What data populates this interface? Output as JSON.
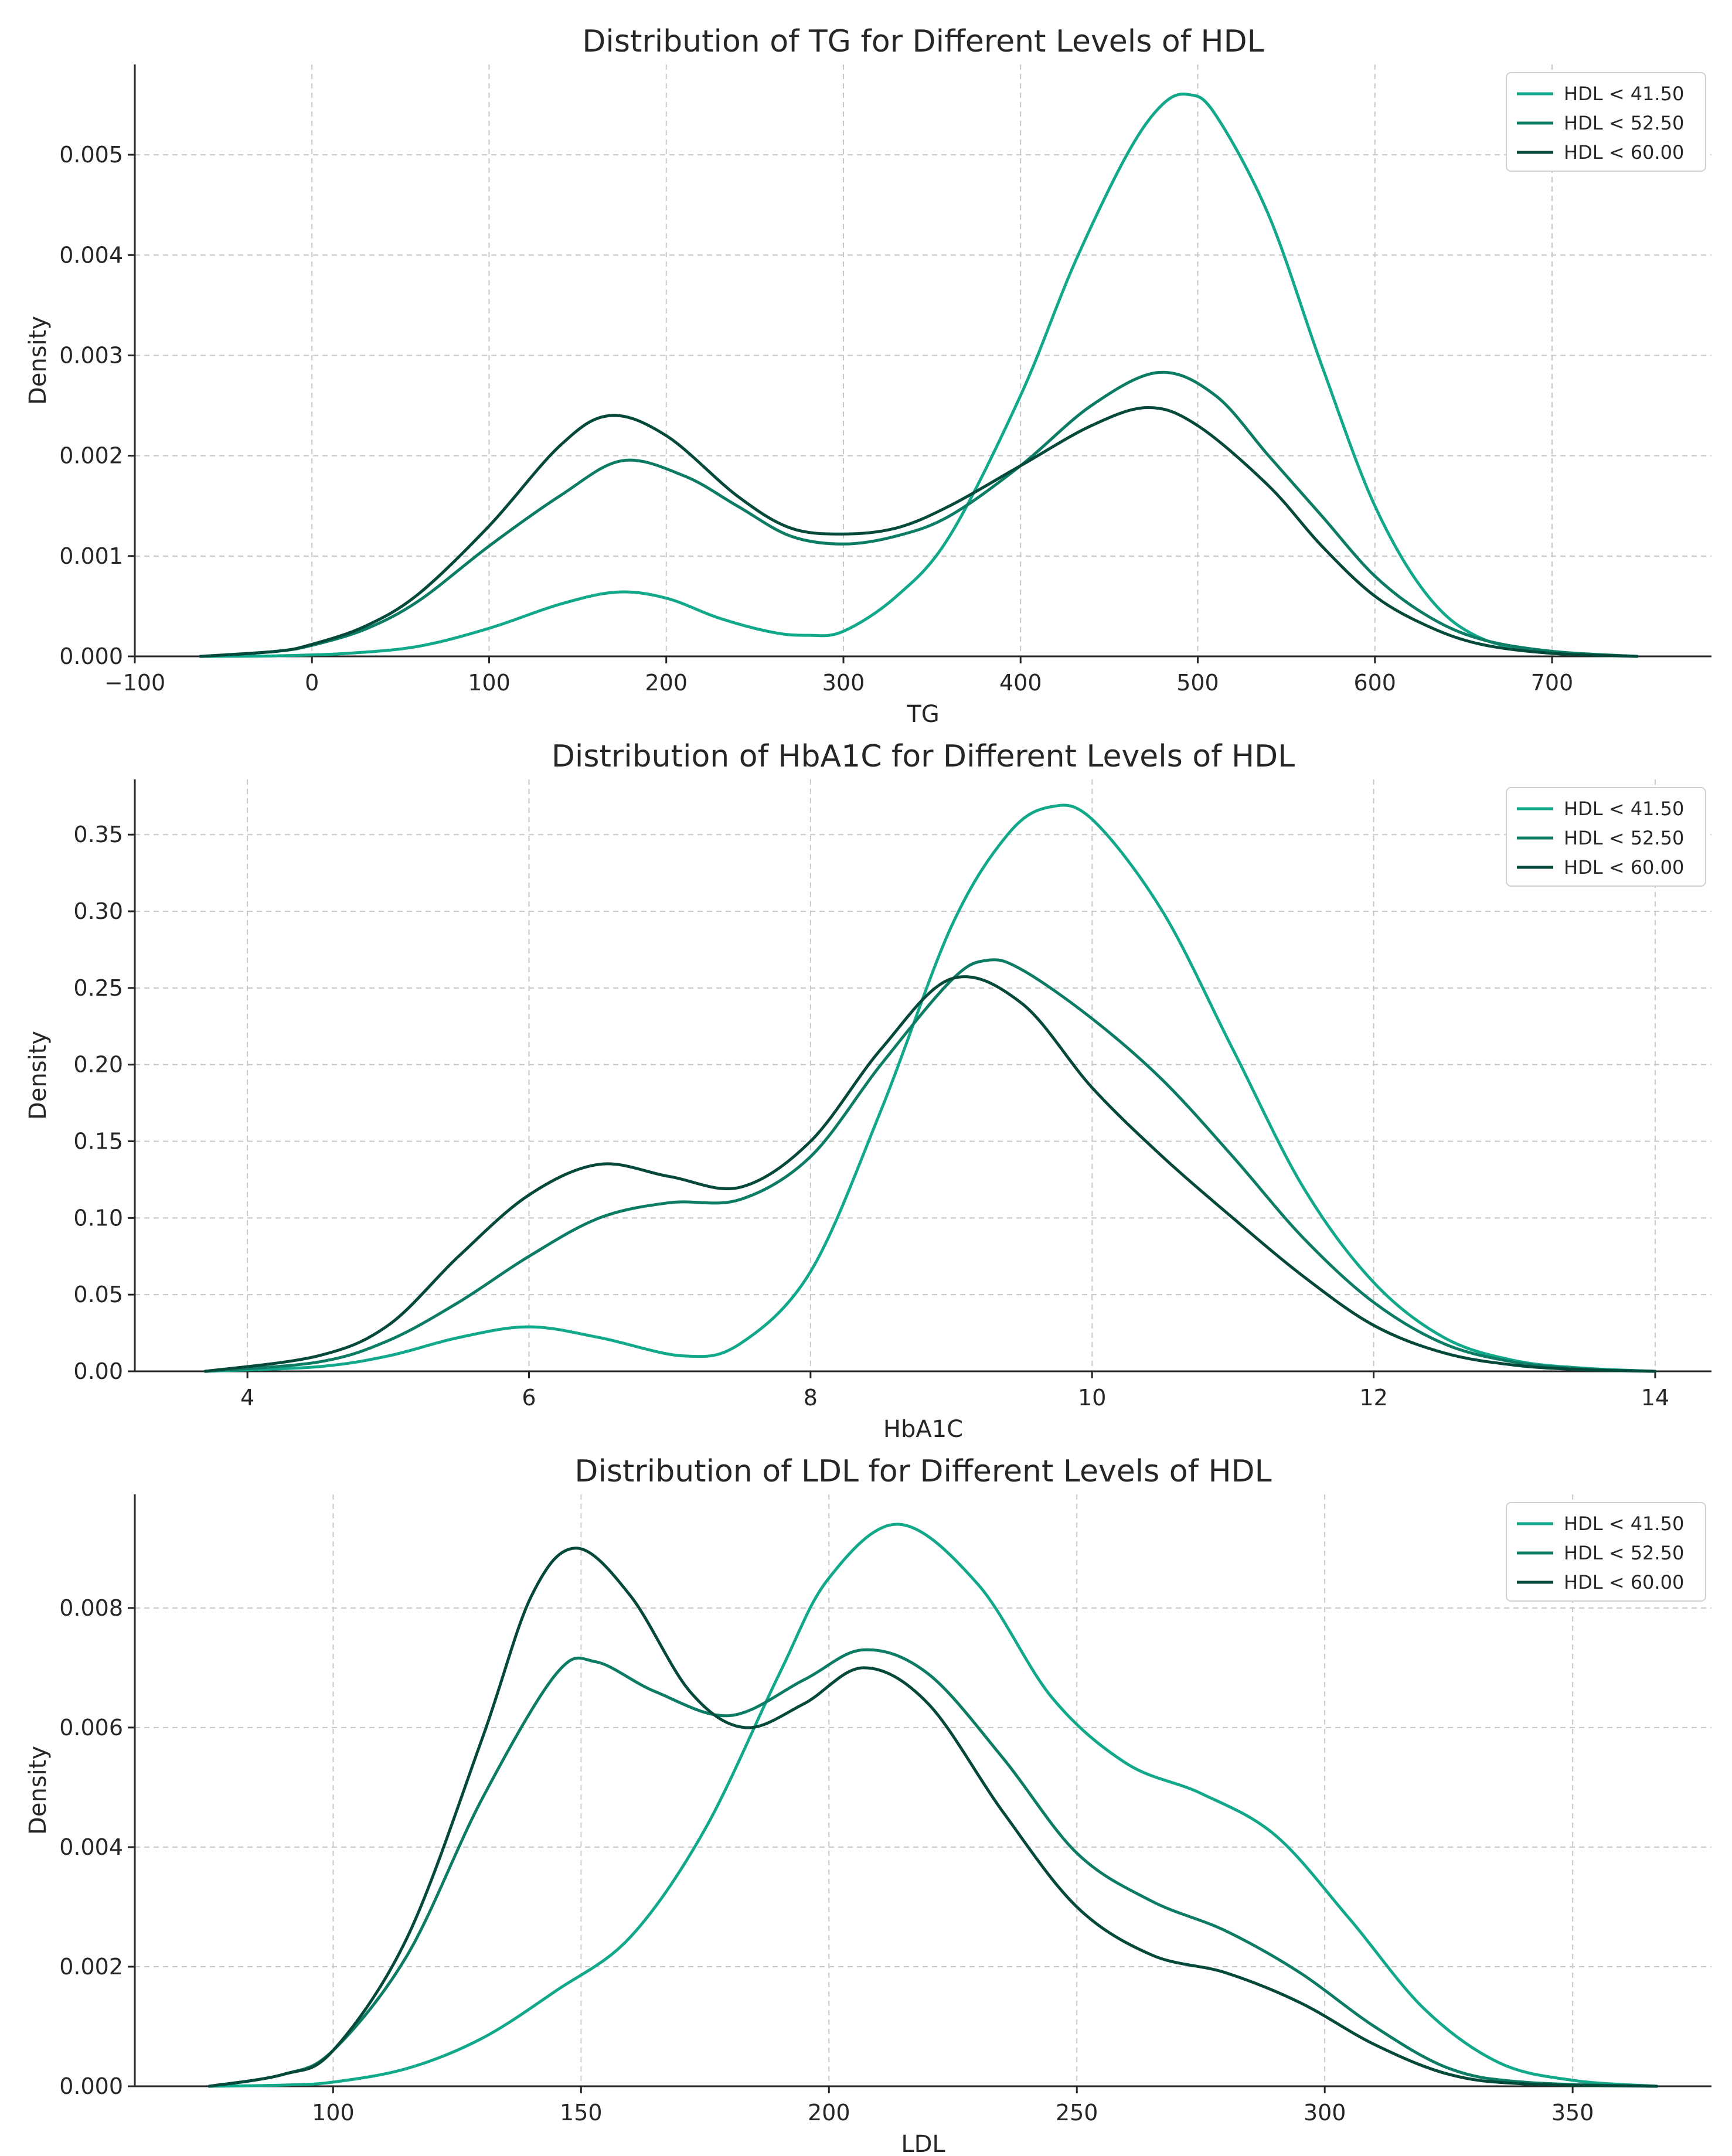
{
  "colors": {
    "series": [
      "#12a88a",
      "#0c7d64",
      "#05493a"
    ],
    "text": "#262626",
    "grid": "#c8c8c8"
  },
  "chart_data": [
    {
      "type": "line",
      "title": "Distribution of TG for Different Levels of HDL",
      "xlabel": "TG",
      "ylabel": "Density",
      "xlim": [
        -100,
        790
      ],
      "ylim": [
        0,
        0.0059
      ],
      "xticks": [
        -100,
        0,
        100,
        200,
        300,
        400,
        500,
        600,
        700
      ],
      "xtick_labels": [
        "−100",
        "0",
        "100",
        "200",
        "300",
        "400",
        "500",
        "600",
        "700"
      ],
      "yticks": [
        0,
        0.001,
        0.002,
        0.003,
        0.004,
        0.005
      ],
      "ytick_labels": [
        "0.000",
        "0.001",
        "0.002",
        "0.003",
        "0.004",
        "0.005"
      ],
      "grid": true,
      "legend_position": "top-right",
      "series": [
        {
          "name": "HDL < 41.50",
          "x": [
            -63,
            -20,
            20,
            60,
            100,
            140,
            172,
            200,
            230,
            260,
            280,
            300,
            330,
            360,
            400,
            430,
            460,
            480,
            495,
            510,
            540,
            570,
            600,
            630,
            660,
            700,
            748
          ],
          "y": [
            0,
            5e-06,
            3e-05,
            0.0001,
            0.00028,
            0.00052,
            0.00064,
            0.00058,
            0.00038,
            0.00024,
            0.00021,
            0.00025,
            0.0006,
            0.0012,
            0.0026,
            0.0039,
            0.005,
            0.0055,
            0.0056,
            0.0054,
            0.0044,
            0.0029,
            0.0015,
            0.0006,
            0.00018,
            4e-05,
            0
          ]
        },
        {
          "name": "HDL < 52.50",
          "x": [
            -63,
            -20,
            0,
            30,
            60,
            100,
            140,
            175,
            210,
            240,
            270,
            300,
            330,
            360,
            400,
            440,
            478,
            510,
            540,
            570,
            600,
            630,
            660,
            700,
            748
          ],
          "y": [
            0,
            5e-05,
            0.00011,
            0.00027,
            0.00055,
            0.0011,
            0.0016,
            0.00195,
            0.0018,
            0.0015,
            0.0012,
            0.00112,
            0.0012,
            0.0014,
            0.0019,
            0.0025,
            0.00283,
            0.0026,
            0.002,
            0.0014,
            0.0008,
            0.0004,
            0.00017,
            5e-05,
            0
          ]
        },
        {
          "name": "HDL < 60.00",
          "x": [
            -63,
            -20,
            0,
            30,
            60,
            100,
            140,
            168,
            200,
            240,
            270,
            300,
            330,
            360,
            400,
            440,
            472,
            500,
            540,
            570,
            600,
            630,
            660,
            700,
            748
          ],
          "y": [
            0,
            5e-05,
            0.00012,
            0.0003,
            0.00062,
            0.0013,
            0.0021,
            0.0024,
            0.0022,
            0.0016,
            0.00128,
            0.00122,
            0.00128,
            0.0015,
            0.0019,
            0.0023,
            0.00248,
            0.0023,
            0.0017,
            0.0011,
            0.0006,
            0.0003,
            0.00012,
            3e-05,
            0
          ]
        }
      ]
    },
    {
      "type": "line",
      "title": "Distribution of HbA1C for Different Levels of HDL",
      "xlabel": "HbA1C",
      "ylabel": "Density",
      "xlim": [
        3.2,
        14.4
      ],
      "ylim": [
        0,
        0.386
      ],
      "xticks": [
        4,
        6,
        8,
        10,
        12,
        14
      ],
      "xtick_labels": [
        "4",
        "6",
        "8",
        "10",
        "12",
        "14"
      ],
      "yticks": [
        0,
        0.05,
        0.1,
        0.15,
        0.2,
        0.25,
        0.3,
        0.35
      ],
      "ytick_labels": [
        "0.00",
        "0.05",
        "0.10",
        "0.15",
        "0.20",
        "0.25",
        "0.30",
        "0.35"
      ],
      "grid": true,
      "legend_position": "top-right",
      "series": [
        {
          "name": "HDL < 41.50",
          "x": [
            3.7,
            4.5,
            5.0,
            5.5,
            6.0,
            6.5,
            7.1,
            7.5,
            8.0,
            8.5,
            9.0,
            9.4,
            9.7,
            10.0,
            10.5,
            11.0,
            11.5,
            12.0,
            12.5,
            13.0,
            13.5,
            14.0
          ],
          "y": [
            0,
            0.003,
            0.01,
            0.022,
            0.029,
            0.022,
            0.01,
            0.018,
            0.065,
            0.17,
            0.29,
            0.35,
            0.368,
            0.36,
            0.3,
            0.21,
            0.12,
            0.058,
            0.022,
            0.007,
            0.002,
            0
          ]
        },
        {
          "name": "HDL < 52.50",
          "x": [
            3.7,
            4.5,
            5.0,
            5.5,
            6.0,
            6.5,
            7.0,
            7.5,
            8.0,
            8.5,
            9.0,
            9.25,
            9.5,
            10.0,
            10.5,
            11.0,
            11.5,
            12.0,
            12.5,
            13.0,
            13.5,
            14.0
          ],
          "y": [
            0,
            0.006,
            0.02,
            0.045,
            0.075,
            0.1,
            0.11,
            0.112,
            0.14,
            0.2,
            0.255,
            0.268,
            0.262,
            0.23,
            0.19,
            0.14,
            0.087,
            0.045,
            0.018,
            0.006,
            0.0015,
            0
          ]
        },
        {
          "name": "HDL < 60.00",
          "x": [
            3.7,
            4.5,
            5.0,
            5.5,
            6.0,
            6.5,
            7.0,
            7.5,
            8.0,
            8.5,
            9.0,
            9.5,
            10.0,
            10.5,
            11.0,
            11.5,
            12.0,
            12.5,
            13.0,
            13.5,
            14.0
          ],
          "y": [
            0,
            0.01,
            0.03,
            0.075,
            0.115,
            0.135,
            0.127,
            0.12,
            0.15,
            0.21,
            0.256,
            0.24,
            0.185,
            0.14,
            0.1,
            0.062,
            0.03,
            0.012,
            0.004,
            0.001,
            0
          ]
        }
      ]
    },
    {
      "type": "line",
      "title": "Distribution of LDL for Different Levels of HDL",
      "xlabel": "LDL",
      "ylabel": "Density",
      "xlim": [
        60,
        378
      ],
      "ylim": [
        0,
        0.0099
      ],
      "xticks": [
        100,
        150,
        200,
        250,
        300,
        350
      ],
      "xtick_labels": [
        "100",
        "150",
        "200",
        "250",
        "300",
        "350"
      ],
      "yticks": [
        0,
        0.002,
        0.004,
        0.006,
        0.008
      ],
      "ytick_labels": [
        "0.000",
        "0.002",
        "0.004",
        "0.006",
        "0.008"
      ],
      "grid": true,
      "legend_position": "top-right",
      "series": [
        {
          "name": "HDL < 41.50",
          "x": [
            75,
            90,
            100,
            115,
            130,
            145,
            160,
            175,
            190,
            200,
            214,
            230,
            245,
            260,
            275,
            290,
            305,
            320,
            335,
            350,
            367
          ],
          "y": [
            0,
            2e-05,
            7e-05,
            0.0003,
            0.0008,
            0.0016,
            0.0025,
            0.0043,
            0.0069,
            0.0085,
            0.0094,
            0.0084,
            0.0065,
            0.0054,
            0.0049,
            0.0042,
            0.0028,
            0.0013,
            0.0004,
            0.0001,
            0
          ]
        },
        {
          "name": "HDL < 52.50",
          "x": [
            75,
            90,
            100,
            115,
            130,
            145,
            153,
            165,
            180,
            195,
            207,
            220,
            235,
            250,
            265,
            280,
            295,
            310,
            325,
            340,
            367
          ],
          "y": [
            0,
            0.0002,
            0.0006,
            0.0022,
            0.0048,
            0.0069,
            0.0071,
            0.0066,
            0.0062,
            0.0068,
            0.0073,
            0.0069,
            0.0055,
            0.0039,
            0.0031,
            0.0026,
            0.0019,
            0.001,
            0.0003,
            7e-05,
            0
          ]
        },
        {
          "name": "HDL < 60.00",
          "x": [
            75,
            90,
            100,
            115,
            130,
            140,
            149,
            160,
            172,
            183,
            195,
            207,
            220,
            235,
            250,
            265,
            280,
            295,
            310,
            325,
            340,
            367
          ],
          "y": [
            0,
            0.0002,
            0.0006,
            0.0025,
            0.0058,
            0.0082,
            0.009,
            0.0082,
            0.0066,
            0.006,
            0.0064,
            0.007,
            0.0064,
            0.0046,
            0.003,
            0.0022,
            0.0019,
            0.0014,
            0.0007,
            0.0002,
            4e-05,
            0
          ]
        }
      ]
    }
  ]
}
